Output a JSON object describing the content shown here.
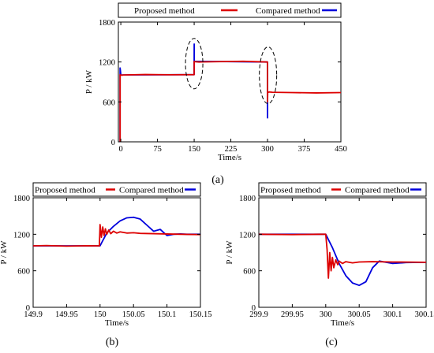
{
  "chart_data": [
    {
      "id": "a",
      "type": "line",
      "panel_label": "(a)",
      "xlabel": "Time/s",
      "ylabel": "P / kW",
      "xlim": [
        -5,
        450
      ],
      "ylim": [
        0,
        1800
      ],
      "xticks": [
        "0",
        "75",
        "150",
        "225",
        "300",
        "375",
        "450"
      ],
      "xtick_values": [
        0,
        75,
        150,
        225,
        300,
        375,
        450
      ],
      "yticks": [
        "0",
        "600",
        "1200",
        "1800"
      ],
      "ytick_values": [
        0,
        600,
        1200,
        1800
      ],
      "legend_placement": "top",
      "colors": {
        "proposed": "#dd0000",
        "compared": "#0000dd"
      },
      "series": [
        {
          "name": "Proposed method",
          "x": [
            -1.5,
            -1.5,
            -1,
            0,
            2,
            5,
            50,
            100,
            149.9,
            150,
            150.1,
            160,
            200,
            250,
            299.9,
            300,
            300.3,
            303,
            310,
            350,
            400,
            450
          ],
          "y": [
            0,
            1010,
            1005,
            1005,
            1000,
            1005,
            1012,
            1008,
            1010,
            1210,
            1205,
            1200,
            1205,
            1210,
            1200,
            600,
            740,
            750,
            745,
            740,
            735,
            740
          ]
        },
        {
          "name": "Compared method",
          "x": [
            -1.5,
            -1.5,
            -0.5,
            0,
            149.95,
            150,
            150.05,
            150.15,
            299.9,
            300,
            300.05,
            300.15
          ],
          "y": [
            0,
            1110,
            1050,
            1005,
            1010,
            1300,
            1470,
            1210,
            1200,
            520,
            360,
            740
          ]
        }
      ],
      "annotations": [
        "dashed ellipse at t=150",
        "dashed ellipse at t=300"
      ]
    },
    {
      "id": "b",
      "type": "line",
      "panel_label": "(b)",
      "xlabel": "Time/s",
      "ylabel": "P / kW",
      "xlim": [
        149.9,
        150.15
      ],
      "ylim": [
        0,
        1800
      ],
      "xticks": [
        "149.9",
        "149.95",
        "150",
        "150.05",
        "150.1",
        "150.15"
      ],
      "xtick_values": [
        149.9,
        149.95,
        150,
        150.05,
        150.1,
        150.15
      ],
      "yticks": [
        "0",
        "600",
        "1200",
        "1800"
      ],
      "ytick_values": [
        0,
        600,
        1200,
        1800
      ],
      "legend_placement": "top",
      "colors": {
        "proposed": "#dd0000",
        "compared": "#0000dd"
      },
      "series": [
        {
          "name": "Proposed method",
          "x": [
            149.9,
            149.92,
            149.95,
            149.98,
            149.999,
            150,
            150.002,
            150.004,
            150.006,
            150.008,
            150.01,
            150.013,
            150.016,
            150.02,
            150.025,
            150.03,
            150.04,
            150.05,
            150.06,
            150.08,
            150.1,
            150.12,
            150.15
          ],
          "y": [
            1010,
            1015,
            1005,
            1012,
            1010,
            1360,
            1150,
            1320,
            1180,
            1290,
            1200,
            1270,
            1210,
            1250,
            1220,
            1240,
            1220,
            1225,
            1215,
            1210,
            1205,
            1200,
            1195
          ]
        },
        {
          "name": "Compared method",
          "x": [
            149.9,
            149.95,
            150,
            150.01,
            150.02,
            150.03,
            150.04,
            150.05,
            150.06,
            150.07,
            150.08,
            150.09,
            150.1,
            150.11,
            150.12,
            150.13,
            150.15
          ],
          "y": [
            1010,
            1010,
            1010,
            1220,
            1330,
            1420,
            1470,
            1480,
            1450,
            1350,
            1250,
            1280,
            1180,
            1200,
            1205,
            1200,
            1200
          ]
        }
      ]
    },
    {
      "id": "c",
      "type": "line",
      "panel_label": "(c)",
      "xlabel": "Time/s",
      "ylabel": "P / kW",
      "xlim": [
        299.9,
        300.15
      ],
      "ylim": [
        0,
        1800
      ],
      "xticks": [
        "299.9",
        "299.95",
        "300",
        "300.05",
        "300.1",
        "300.15"
      ],
      "xtick_values": [
        299.9,
        299.95,
        300,
        300.05,
        300.1,
        300.15
      ],
      "yticks": [
        "0",
        "600",
        "1200",
        "1800"
      ],
      "ytick_values": [
        0,
        600,
        1200,
        1800
      ],
      "legend_placement": "top",
      "colors": {
        "proposed": "#dd0000",
        "compared": "#0000dd"
      },
      "series": [
        {
          "name": "Proposed method",
          "x": [
            299.9,
            299.95,
            299.99,
            300,
            300.002,
            300.004,
            300.006,
            300.008,
            300.01,
            300.012,
            300.015,
            300.018,
            300.02,
            300.025,
            300.03,
            300.04,
            300.05,
            300.07,
            300.1,
            300.15
          ],
          "y": [
            1200,
            1195,
            1200,
            1200,
            950,
            480,
            900,
            600,
            820,
            650,
            780,
            700,
            760,
            720,
            750,
            730,
            745,
            750,
            745,
            740
          ]
        },
        {
          "name": "Compared method",
          "x": [
            299.9,
            299.95,
            300,
            300.01,
            300.02,
            300.03,
            300.04,
            300.05,
            300.06,
            300.07,
            300.08,
            300.09,
            300.1,
            300.12,
            300.15
          ],
          "y": [
            1200,
            1200,
            1200,
            980,
            720,
            520,
            400,
            360,
            420,
            650,
            760,
            740,
            720,
            735,
            740
          ]
        }
      ]
    }
  ]
}
